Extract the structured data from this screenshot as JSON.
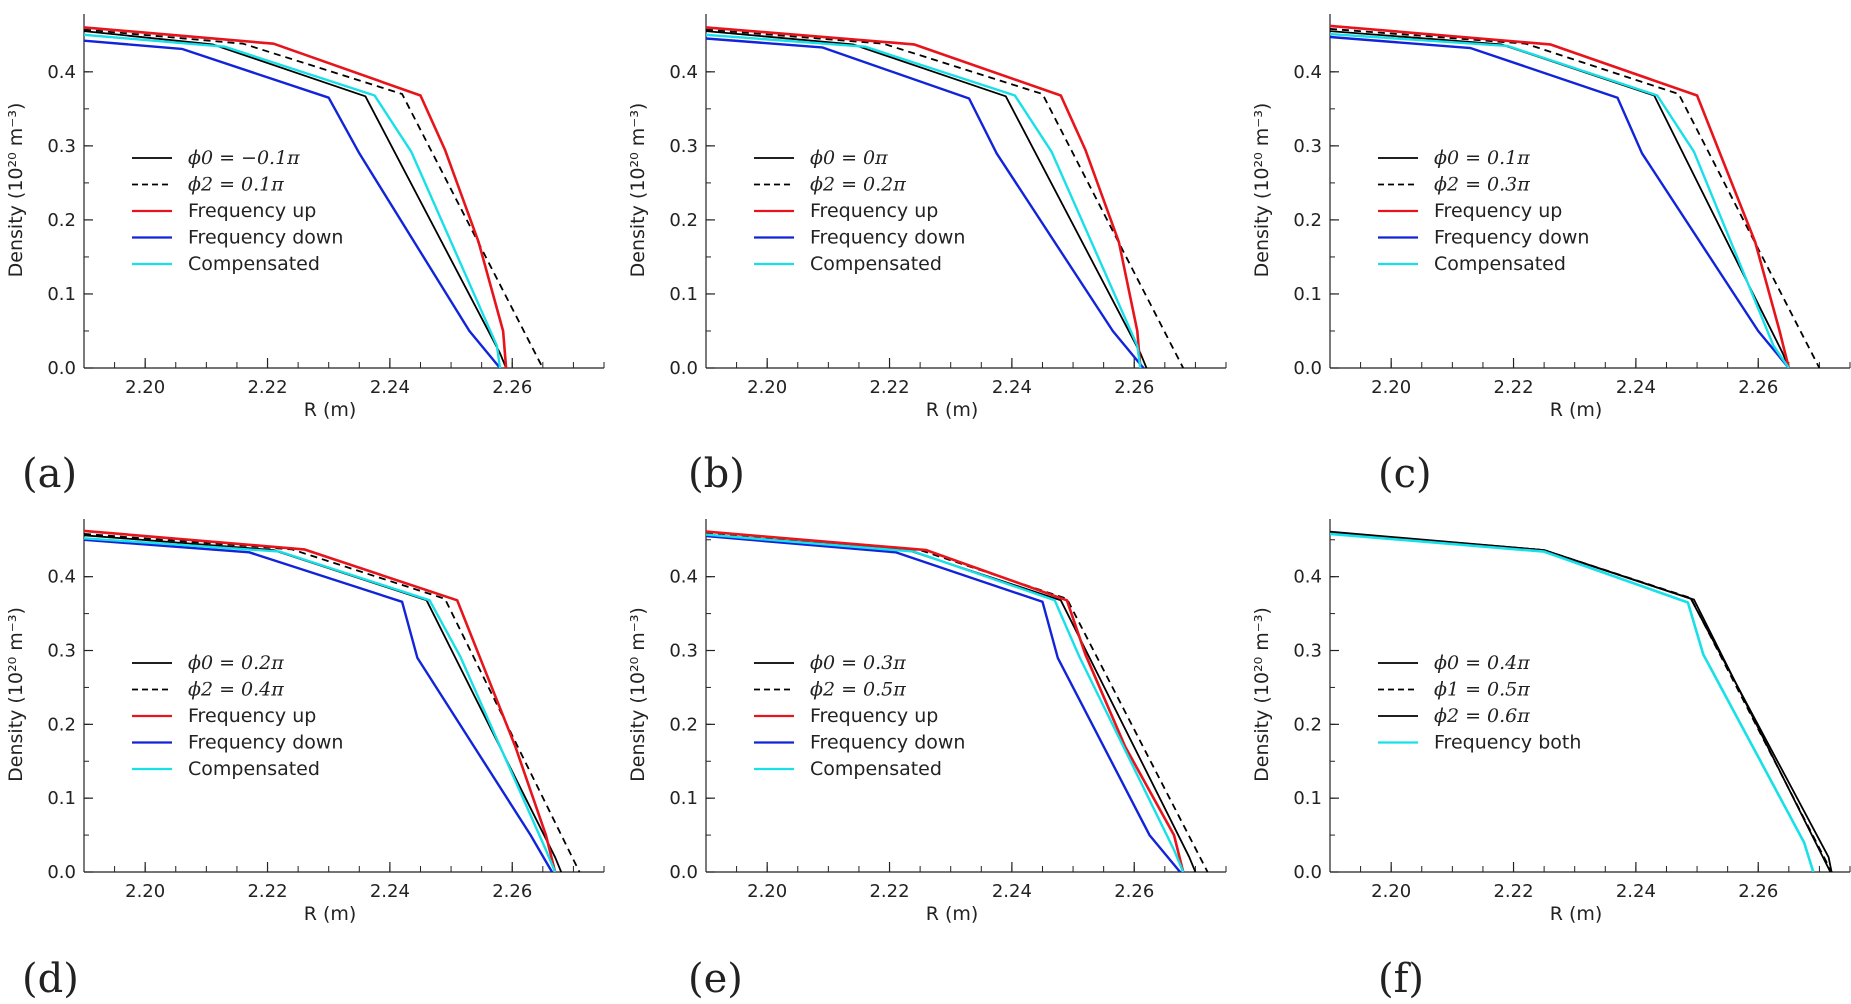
{
  "chart_data": [
    {
      "type": "line",
      "panel_label": "(a)",
      "xlabel": "R (m)",
      "ylabel": "Density (10²⁰ m⁻³)",
      "xlim": [
        2.19,
        2.275
      ],
      "ylim": [
        0.0,
        0.47
      ],
      "xticks": [
        "2.20",
        "2.22",
        "2.24",
        "2.26"
      ],
      "yticks": [
        "0.0",
        "0.1",
        "0.2",
        "0.3",
        "0.4"
      ],
      "legend_placement": "center-left",
      "series": [
        {
          "name": "ϕ0 = −0.1π",
          "color": "#000000",
          "style": "solid",
          "width": 1.8,
          "x": [
            2.19,
            2.211,
            2.236,
            2.258,
            2.259
          ],
          "y": [
            0.455,
            0.437,
            0.367,
            0.02,
            0.0
          ]
        },
        {
          "name": "ϕ2 = 0.1π",
          "color": "#000000",
          "style": "dashed",
          "width": 1.8,
          "x": [
            2.19,
            2.216,
            2.242,
            2.265
          ],
          "y": [
            0.457,
            0.438,
            0.37,
            0.0
          ]
        },
        {
          "name": "Frequency up",
          "color": "#e8141c",
          "style": "solid",
          "width": 2.6,
          "x": [
            2.19,
            2.221,
            2.245,
            2.249,
            2.2545,
            2.2585,
            2.259
          ],
          "y": [
            0.46,
            0.438,
            0.368,
            0.295,
            0.17,
            0.05,
            0.0
          ]
        },
        {
          "name": "Frequency down",
          "color": "#1224d9",
          "style": "solid",
          "width": 2.4,
          "x": [
            2.19,
            2.206,
            2.23,
            2.235,
            2.253,
            2.258
          ],
          "y": [
            0.442,
            0.431,
            0.365,
            0.29,
            0.05,
            0.0
          ]
        },
        {
          "name": "Compensated",
          "color": "#17e0e8",
          "style": "solid",
          "width": 2.4,
          "x": [
            2.19,
            2.213,
            2.2375,
            2.2435,
            2.2575,
            2.258
          ],
          "y": [
            0.45,
            0.434,
            0.368,
            0.292,
            0.03,
            0.0
          ]
        }
      ]
    },
    {
      "type": "line",
      "panel_label": "(b)",
      "xlabel": "R (m)",
      "ylabel": "Density (10²⁰ m⁻³)",
      "xlim": [
        2.19,
        2.275
      ],
      "ylim": [
        0.0,
        0.47
      ],
      "xticks": [
        "2.20",
        "2.22",
        "2.24",
        "2.26"
      ],
      "yticks": [
        "0.0",
        "0.1",
        "0.2",
        "0.3",
        "0.4"
      ],
      "legend_placement": "center-left",
      "series": [
        {
          "name": "ϕ0 = 0π",
          "color": "#000000",
          "style": "solid",
          "width": 1.8,
          "x": [
            2.19,
            2.214,
            2.239,
            2.261,
            2.262
          ],
          "y": [
            0.455,
            0.437,
            0.367,
            0.02,
            0.0
          ]
        },
        {
          "name": "ϕ2 = 0.2π",
          "color": "#000000",
          "style": "dashed",
          "width": 1.8,
          "x": [
            2.19,
            2.219,
            2.245,
            2.268
          ],
          "y": [
            0.457,
            0.438,
            0.37,
            0.0
          ]
        },
        {
          "name": "Frequency up",
          "color": "#e8141c",
          "style": "solid",
          "width": 2.6,
          "x": [
            2.19,
            2.224,
            2.248,
            2.252,
            2.2575,
            2.2605,
            2.261
          ],
          "y": [
            0.46,
            0.437,
            0.368,
            0.295,
            0.17,
            0.05,
            0.0
          ]
        },
        {
          "name": "Frequency down",
          "color": "#1224d9",
          "style": "solid",
          "width": 2.4,
          "x": [
            2.19,
            2.209,
            2.233,
            2.2375,
            2.2565,
            2.2615
          ],
          "y": [
            0.445,
            0.433,
            0.364,
            0.29,
            0.05,
            0.0
          ]
        },
        {
          "name": "Compensated",
          "color": "#17e0e8",
          "style": "solid",
          "width": 2.4,
          "x": [
            2.19,
            2.216,
            2.2405,
            2.2465,
            2.2605,
            2.261
          ],
          "y": [
            0.45,
            0.434,
            0.368,
            0.292,
            0.03,
            0.0
          ]
        }
      ]
    },
    {
      "type": "line",
      "panel_label": "(c)",
      "xlabel": "R (m)",
      "ylabel": "Density (10²⁰ m⁻³)",
      "xlim": [
        2.19,
        2.275
      ],
      "ylim": [
        0.0,
        0.47
      ],
      "xticks": [
        "2.20",
        "2.22",
        "2.24",
        "2.26"
      ],
      "yticks": [
        "0.0",
        "0.1",
        "0.2",
        "0.3",
        "0.4"
      ],
      "legend_placement": "center-left",
      "series": [
        {
          "name": "ϕ0 = 0.1π",
          "color": "#000000",
          "style": "solid",
          "width": 1.8,
          "x": [
            2.19,
            2.218,
            2.243,
            2.264,
            2.265
          ],
          "y": [
            0.455,
            0.437,
            0.368,
            0.02,
            0.0
          ]
        },
        {
          "name": "ϕ2 = 0.3π",
          "color": "#000000",
          "style": "dashed",
          "width": 1.8,
          "x": [
            2.19,
            2.222,
            2.247,
            2.27
          ],
          "y": [
            0.458,
            0.438,
            0.37,
            0.0
          ]
        },
        {
          "name": "Frequency up",
          "color": "#e8141c",
          "style": "solid",
          "width": 2.6,
          "x": [
            2.19,
            2.226,
            2.25,
            2.2535,
            2.2595,
            2.2635,
            2.265
          ],
          "y": [
            0.462,
            0.437,
            0.368,
            0.295,
            0.17,
            0.05,
            0.0
          ]
        },
        {
          "name": "Frequency down",
          "color": "#1224d9",
          "style": "solid",
          "width": 2.4,
          "x": [
            2.19,
            2.213,
            2.237,
            2.241,
            2.26,
            2.265
          ],
          "y": [
            0.447,
            0.432,
            0.365,
            0.29,
            0.05,
            0.0
          ]
        },
        {
          "name": "Compensated",
          "color": "#17e0e8",
          "style": "solid",
          "width": 2.4,
          "x": [
            2.19,
            2.219,
            2.2435,
            2.2495,
            2.2625,
            2.265
          ],
          "y": [
            0.451,
            0.435,
            0.368,
            0.292,
            0.03,
            0.0
          ]
        }
      ]
    },
    {
      "type": "line",
      "panel_label": "(d)",
      "xlabel": "R (m)",
      "ylabel": "Density (10²⁰ m⁻³)",
      "xlim": [
        2.19,
        2.275
      ],
      "ylim": [
        0.0,
        0.47
      ],
      "xticks": [
        "2.20",
        "2.22",
        "2.24",
        "2.26"
      ],
      "yticks": [
        "0.0",
        "0.1",
        "0.2",
        "0.3",
        "0.4"
      ],
      "legend_placement": "center-left",
      "series": [
        {
          "name": "ϕ0 = 0.2π",
          "color": "#000000",
          "style": "solid",
          "width": 1.8,
          "x": [
            2.19,
            2.221,
            2.246,
            2.267,
            2.268
          ],
          "y": [
            0.456,
            0.436,
            0.368,
            0.02,
            0.0
          ]
        },
        {
          "name": "ϕ2 = 0.4π",
          "color": "#000000",
          "style": "dashed",
          "width": 1.8,
          "x": [
            2.19,
            2.224,
            2.249,
            2.271
          ],
          "y": [
            0.458,
            0.437,
            0.37,
            0.0
          ]
        },
        {
          "name": "Frequency up",
          "color": "#e8141c",
          "style": "solid",
          "width": 2.6,
          "x": [
            2.19,
            2.226,
            2.251,
            2.2545,
            2.2605,
            2.2655,
            2.267
          ],
          "y": [
            0.462,
            0.437,
            0.368,
            0.295,
            0.17,
            0.05,
            0.0
          ]
        },
        {
          "name": "Frequency down",
          "color": "#1224d9",
          "style": "solid",
          "width": 2.4,
          "x": [
            2.19,
            2.217,
            2.242,
            2.2445,
            2.263,
            2.2665
          ],
          "y": [
            0.45,
            0.433,
            0.366,
            0.29,
            0.05,
            0.0
          ]
        },
        {
          "name": "Compensated",
          "color": "#17e0e8",
          "style": "solid",
          "width": 2.4,
          "x": [
            2.19,
            2.222,
            2.2465,
            2.2515,
            2.2655,
            2.267
          ],
          "y": [
            0.452,
            0.434,
            0.368,
            0.292,
            0.03,
            0.0
          ]
        }
      ]
    },
    {
      "type": "line",
      "panel_label": "(e)",
      "xlabel": "R (m)",
      "ylabel": "Density (10²⁰ m⁻³)",
      "xlim": [
        2.19,
        2.275
      ],
      "ylim": [
        0.0,
        0.47
      ],
      "xticks": [
        "2.20",
        "2.22",
        "2.24",
        "2.26"
      ],
      "yticks": [
        "0.0",
        "0.1",
        "0.2",
        "0.3",
        "0.4"
      ],
      "legend_placement": "center-left",
      "series": [
        {
          "name": "ϕ0 = 0.3π",
          "color": "#000000",
          "style": "solid",
          "width": 1.8,
          "x": [
            2.19,
            2.223,
            2.248,
            2.269,
            2.27
          ],
          "y": [
            0.457,
            0.436,
            0.368,
            0.02,
            0.0
          ]
        },
        {
          "name": "ϕ2 = 0.5π",
          "color": "#000000",
          "style": "dashed",
          "width": 1.8,
          "x": [
            2.19,
            2.225,
            2.249,
            2.272
          ],
          "y": [
            0.459,
            0.436,
            0.37,
            0.0
          ]
        },
        {
          "name": "Frequency up",
          "color": "#e8141c",
          "style": "solid",
          "width": 2.6,
          "x": [
            2.19,
            2.226,
            2.249,
            2.252,
            2.2585,
            2.2665,
            2.268
          ],
          "y": [
            0.461,
            0.436,
            0.368,
            0.295,
            0.17,
            0.05,
            0.0
          ]
        },
        {
          "name": "Frequency down",
          "color": "#1224d9",
          "style": "solid",
          "width": 2.4,
          "x": [
            2.19,
            2.221,
            2.245,
            2.2475,
            2.2625,
            2.2675
          ],
          "y": [
            0.455,
            0.433,
            0.366,
            0.29,
            0.05,
            0.0
          ]
        },
        {
          "name": "Compensated",
          "color": "#17e0e8",
          "style": "solid",
          "width": 2.4,
          "x": [
            2.19,
            2.224,
            2.247,
            2.251,
            2.2665,
            2.268
          ],
          "y": [
            0.457,
            0.434,
            0.368,
            0.292,
            0.03,
            0.0
          ]
        }
      ]
    },
    {
      "type": "line",
      "panel_label": "(f)",
      "xlabel": "R (m)",
      "ylabel": "Density (10²⁰ m⁻³)",
      "xlim": [
        2.19,
        2.275
      ],
      "ylim": [
        0.0,
        0.47
      ],
      "xticks": [
        "2.20",
        "2.22",
        "2.24",
        "2.26"
      ],
      "yticks": [
        "0.0",
        "0.1",
        "0.2",
        "0.3",
        "0.4"
      ],
      "legend_placement": "center-left",
      "series": [
        {
          "name": "ϕ0 = 0.4π",
          "color": "#000000",
          "style": "solid",
          "width": 1.8,
          "x": [
            2.19,
            2.225,
            2.249,
            2.2715,
            2.272
          ],
          "y": [
            0.46,
            0.436,
            0.37,
            0.02,
            0.0
          ]
        },
        {
          "name": "ϕ1 = 0.5π",
          "color": "#000000",
          "style": "dashed",
          "width": 1.8,
          "x": [
            2.19,
            2.225,
            2.249,
            2.272
          ],
          "y": [
            0.46,
            0.436,
            0.371,
            0.0
          ]
        },
        {
          "name": "ϕ2 = 0.6π",
          "color": "#000000",
          "style": "solid",
          "width": 1.8,
          "x": [
            2.19,
            2.225,
            2.2495,
            2.2718
          ],
          "y": [
            0.461,
            0.436,
            0.369,
            0.0
          ]
        },
        {
          "name": "Frequency both",
          "color": "#17e0e8",
          "style": "solid",
          "width": 2.6,
          "x": [
            2.19,
            2.225,
            2.2485,
            2.251,
            2.2675,
            2.269
          ],
          "y": [
            0.458,
            0.434,
            0.365,
            0.295,
            0.04,
            0.0
          ]
        }
      ]
    }
  ]
}
